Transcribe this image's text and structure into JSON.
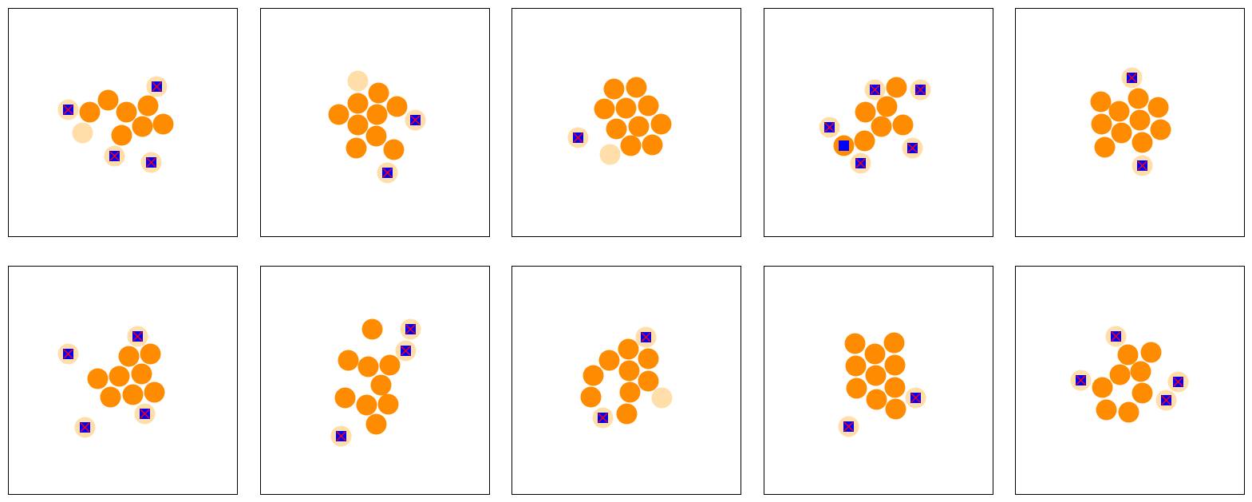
{
  "colors": {
    "body": "#ff8c00",
    "faded": "#ffdeaa",
    "marker": "#0000ff",
    "cross": "#ff0000",
    "frame": "#000000"
  },
  "panels": [
    {
      "solid": [
        [
          112,
          140
        ],
        [
          135,
          125
        ],
        [
          158,
          140
        ],
        [
          185,
          132
        ],
        [
          178,
          158
        ],
        [
          152,
          169
        ],
        [
          204,
          155
        ]
      ],
      "faded": [
        [
          103,
          166
        ]
      ],
      "flagged": [
        [
          85,
          137
        ],
        [
          196,
          108
        ],
        [
          143,
          195
        ],
        [
          189,
          203
        ]
      ],
      "squares": []
    },
    {
      "solid": [
        [
          474,
          116
        ],
        [
          448,
          129
        ],
        [
          497,
          133
        ],
        [
          424,
          143
        ],
        [
          448,
          156
        ],
        [
          472,
          143
        ],
        [
          471,
          170
        ],
        [
          446,
          185
        ],
        [
          493,
          187
        ]
      ],
      "faded": [
        [
          448,
          101
        ]
      ],
      "flagged": [
        [
          520,
          150
        ],
        [
          485,
          216
        ]
      ],
      "squares": []
    },
    {
      "solid": [
        [
          769,
          111
        ],
        [
          797,
          109
        ],
        [
          757,
          136
        ],
        [
          784,
          135
        ],
        [
          812,
          132
        ],
        [
          772,
          161
        ],
        [
          800,
          158
        ],
        [
          828,
          155
        ],
        [
          790,
          182
        ],
        [
          817,
          181
        ]
      ],
      "faded": [
        [
          764,
          193
        ]
      ],
      "flagged": [
        [
          724,
          172
        ]
      ],
      "squares": []
    },
    {
      "solid": [
        [
          1123,
          109
        ],
        [
          1111,
          133
        ],
        [
          1084,
          140
        ],
        [
          1104,
          158
        ],
        [
          1131,
          156
        ],
        [
          1083,
          176
        ],
        [
          1057,
          182
        ]
      ],
      "faded": [],
      "flagged": [
        [
          1096,
          112
        ],
        [
          1153,
          112
        ],
        [
          1039,
          159
        ],
        [
          1143,
          185
        ],
        [
          1078,
          204
        ]
      ],
      "squares": [
        [
          1057,
          182
        ]
      ]
    },
    {
      "solid": [
        [
          1379,
          127
        ],
        [
          1426,
          123
        ],
        [
          1451,
          134
        ],
        [
          1402,
          139
        ],
        [
          1380,
          155
        ],
        [
          1428,
          150
        ],
        [
          1454,
          162
        ],
        [
          1405,
          166
        ],
        [
          1431,
          178
        ],
        [
          1384,
          184
        ]
      ],
      "faded": [],
      "flagged": [
        [
          1418,
          97
        ],
        [
          1431,
          207
        ]
      ],
      "squares": []
    },
    {
      "solid": [
        [
          161,
          446
        ],
        [
          188,
          443
        ],
        [
          149,
          471
        ],
        [
          177,
          468
        ],
        [
          122,
          474
        ],
        [
          138,
          497
        ],
        [
          166,
          494
        ],
        [
          193,
          491
        ]
      ],
      "faded": [],
      "flagged": [
        [
          85,
          443
        ],
        [
          172,
          421
        ],
        [
          181,
          518
        ],
        [
          106,
          535
        ]
      ],
      "squares": []
    },
    {
      "solid": [
        [
          466,
          412
        ],
        [
          436,
          451
        ],
        [
          461,
          459
        ],
        [
          488,
          457
        ],
        [
          477,
          482
        ],
        [
          432,
          498
        ],
        [
          459,
          507
        ],
        [
          486,
          506
        ],
        [
          471,
          531
        ]
      ],
      "faded": [],
      "flagged": [
        [
          514,
          412
        ],
        [
          508,
          439
        ],
        [
          427,
          546
        ]
      ],
      "squares": []
    },
    {
      "solid": [
        [
          787,
          437
        ],
        [
          812,
          449
        ],
        [
          763,
          451
        ],
        [
          788,
          464
        ],
        [
          743,
          470
        ],
        [
          812,
          477
        ],
        [
          740,
          497
        ],
        [
          789,
          491
        ],
        [
          785,
          518
        ]
      ],
      "faded": [
        [
          829,
          498
        ]
      ],
      "flagged": [
        [
          809,
          422
        ],
        [
          755,
          523
        ]
      ],
      "squares": []
    },
    {
      "solid": [
        [
          1071,
          430
        ],
        [
          1120,
          429
        ],
        [
          1096,
          443
        ],
        [
          1072,
          458
        ],
        [
          1121,
          457
        ],
        [
          1097,
          470
        ],
        [
          1073,
          486
        ],
        [
          1121,
          485
        ],
        [
          1098,
          500
        ],
        [
          1122,
          512
        ]
      ],
      "faded": [],
      "flagged": [
        [
          1147,
          498
        ],
        [
          1063,
          534
        ]
      ],
      "squares": []
    },
    {
      "solid": [
        [
          1413,
          444
        ],
        [
          1442,
          441
        ],
        [
          1403,
          469
        ],
        [
          1429,
          465
        ],
        [
          1381,
          485
        ],
        [
          1431,
          492
        ],
        [
          1386,
          513
        ],
        [
          1414,
          516
        ]
      ],
      "faded": [],
      "flagged": [
        [
          1398,
          421
        ],
        [
          1354,
          476
        ],
        [
          1476,
          478
        ],
        [
          1461,
          501
        ]
      ],
      "squares": []
    }
  ]
}
